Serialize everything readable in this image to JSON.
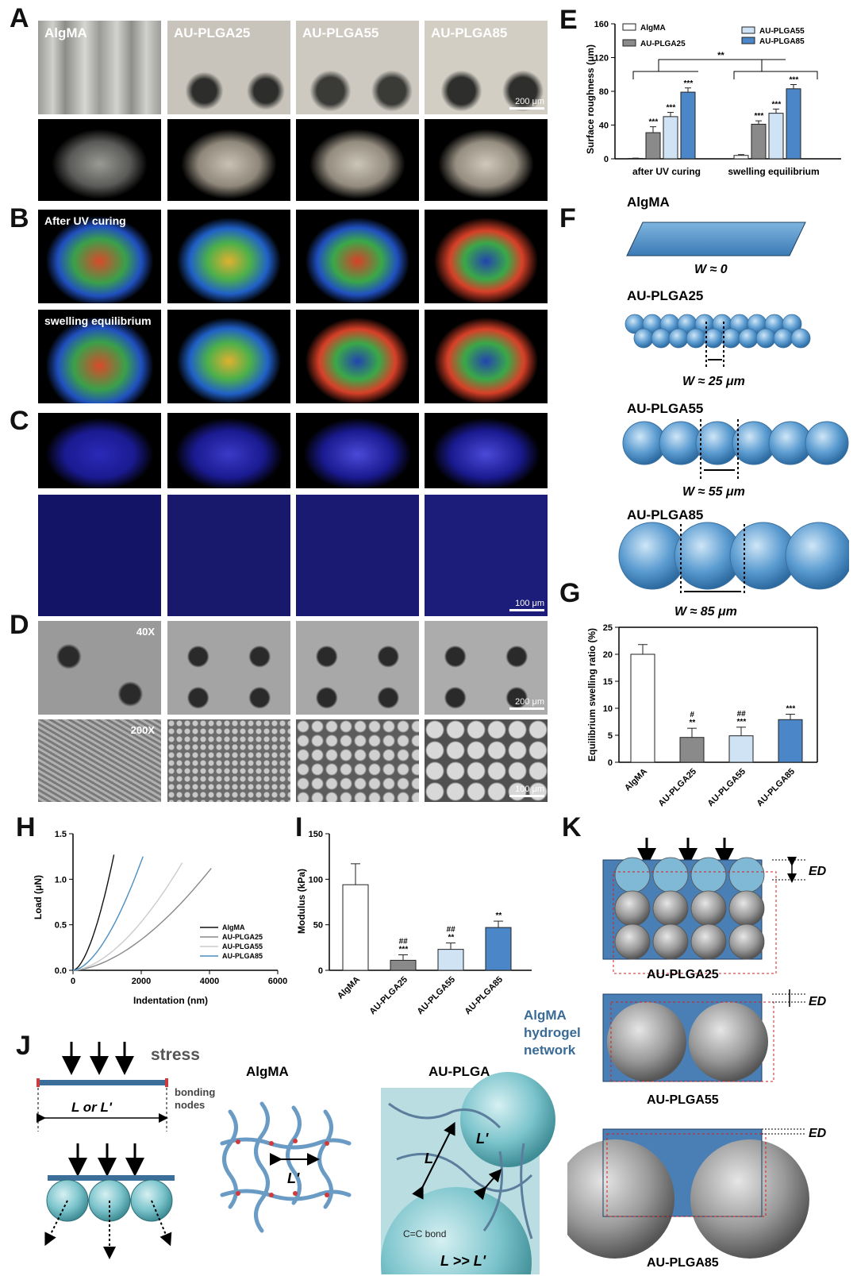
{
  "panel_letters": [
    "A",
    "B",
    "C",
    "D",
    "E",
    "F",
    "G",
    "H",
    "I",
    "J",
    "K"
  ],
  "panelA": {
    "labels": [
      "AlgMA",
      "AU-PLGA25",
      "AU-PLGA55",
      "AU-PLGA85"
    ],
    "scale_bar": "200 μm"
  },
  "panelB": {
    "row1_label": "After UV curing",
    "row2_label": "swelling equilibrium"
  },
  "panelC": {
    "scale_bar": "100 μm"
  },
  "panelD": {
    "mag_low": "40X",
    "mag_high": "200X",
    "scale_low": "200 μm",
    "scale_high": "100 μm"
  },
  "panelF": {
    "items": [
      {
        "name": "AlgMA",
        "w": "W ≈ 0"
      },
      {
        "name": "AU-PLGA25",
        "w": "W ≈ 25 μm"
      },
      {
        "name": "AU-PLGA55",
        "w": "W ≈ 55 μm"
      },
      {
        "name": "AU-PLGA85",
        "w": "W ≈ 85 μm"
      }
    ]
  },
  "panelJ": {
    "stress": "stress",
    "bonding": "bonding",
    "nodes": "nodes",
    "length": "L or L'",
    "algma": "AlgMA",
    "auplga": "AU-PLGA",
    "lprime": "L'",
    "l": "L",
    "ccbond": "C=C bond",
    "relation": "L >> L'"
  },
  "panelK": {
    "ed": "ED",
    "items": [
      "AU-PLGA25",
      "AU-PLGA55",
      "AU-PLGA85"
    ],
    "network_label": [
      "AlgMA",
      "hydrogel",
      "network"
    ]
  },
  "colors": {
    "white": "#ffffff",
    "grey": "#8a8a8a",
    "lightblue": "#cfe3f4",
    "blue": "#4a86c8",
    "hydrogel": "#4a7fb5"
  },
  "chart_data": [
    {
      "id": "E",
      "type": "bar",
      "ylabel": "Surface roughness (μm)",
      "ylim": [
        0,
        160
      ],
      "yticks": [
        0,
        40,
        80,
        120,
        160
      ],
      "groups": [
        "after UV curing",
        "swelling equilibrium"
      ],
      "series": [
        {
          "name": "AlgMA",
          "values": [
            0.5,
            4
          ],
          "errors": [
            0.3,
            1
          ]
        },
        {
          "name": "AU-PLGA25",
          "values": [
            31,
            41
          ],
          "errors": [
            7,
            4
          ]
        },
        {
          "name": "AU-PLGA55",
          "values": [
            50,
            54
          ],
          "errors": [
            5,
            5
          ]
        },
        {
          "name": "AU-PLGA85",
          "values": [
            79,
            83
          ],
          "errors": [
            5,
            5
          ]
        }
      ],
      "sig": [
        [
          "",
          "***",
          "***",
          "***"
        ],
        [
          "",
          "***",
          "***",
          "***"
        ]
      ],
      "bracket_sig": "**"
    },
    {
      "id": "G",
      "type": "bar",
      "ylabel": "Equilibrium swelling ratio (%)",
      "ylim": [
        0,
        25
      ],
      "yticks": [
        0,
        5,
        10,
        15,
        20,
        25
      ],
      "categories": [
        "AlgMA",
        "AU-PLGA25",
        "AU-PLGA55",
        "AU-PLGA85"
      ],
      "values": [
        20,
        4.6,
        4.9,
        7.9
      ],
      "errors": [
        1.8,
        1.7,
        1.6,
        1
      ],
      "sig": [
        [
          "",
          ""
        ],
        [
          "#",
          "**"
        ],
        [
          "##",
          "***"
        ],
        [
          "",
          "***"
        ]
      ]
    },
    {
      "id": "H",
      "type": "line",
      "xlabel": "Indentation (nm)",
      "ylabel": "Load (μN)",
      "xlim": [
        0,
        6000
      ],
      "ylim": [
        0,
        1.5
      ],
      "xticks": [
        0,
        2000,
        4000,
        6000
      ],
      "yticks": [
        0.0,
        0.5,
        1.0,
        1.5
      ],
      "series": [
        {
          "name": "AlgMA",
          "xmax": 1200,
          "ymax": 1.27
        },
        {
          "name": "AU-PLGA25",
          "xmax": 4050,
          "ymax": 1.12
        },
        {
          "name": "AU-PLGA55",
          "xmax": 3200,
          "ymax": 1.18
        },
        {
          "name": "AU-PLGA85",
          "xmax": 2050,
          "ymax": 1.25
        }
      ]
    },
    {
      "id": "I",
      "type": "bar",
      "ylabel": "Modulus (kPa)",
      "ylim": [
        0,
        150
      ],
      "yticks": [
        0,
        50,
        100,
        150
      ],
      "categories": [
        "AlgMA",
        "AU-PLGA25",
        "AU-PLGA55",
        "AU-PLGA85"
      ],
      "values": [
        94,
        11,
        23,
        47
      ],
      "errors": [
        23,
        6,
        7,
        7
      ],
      "sig": [
        [
          "",
          ""
        ],
        [
          "##",
          "***"
        ],
        [
          "##",
          "**"
        ],
        [
          "",
          "**"
        ]
      ]
    }
  ]
}
